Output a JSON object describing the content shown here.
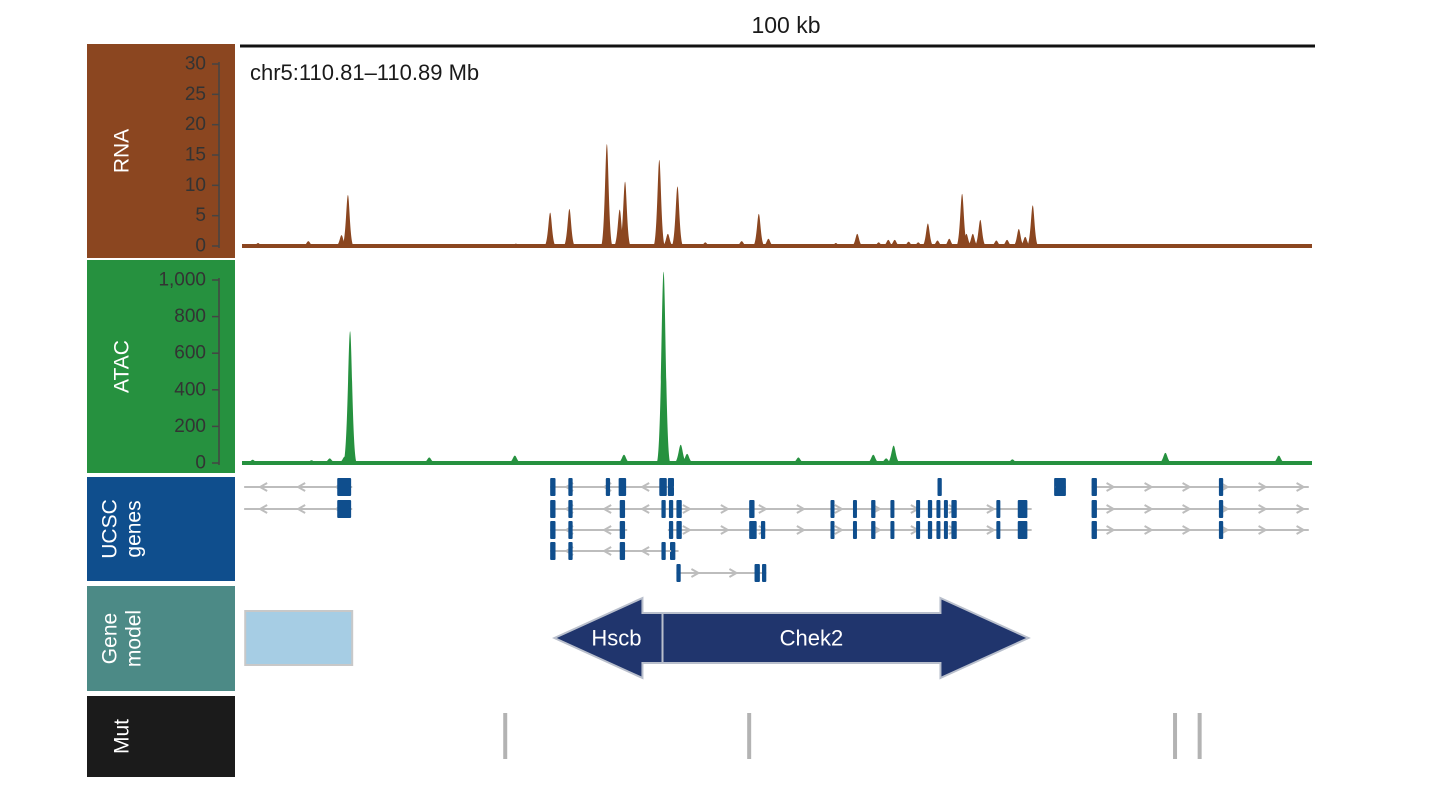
{
  "scale_label": "100 kb",
  "locus_label": "chr5:110.81–110.89 Mb",
  "tracks": [
    {
      "name": "RNA",
      "color": "#8b4620",
      "label_lines": [
        "RNA"
      ]
    },
    {
      "name": "ATAC",
      "color": "#26913f",
      "label_lines": [
        "ATAC"
      ]
    },
    {
      "name": "UCSC genes",
      "color": "#0f4e8d",
      "label_lines": [
        "UCSC",
        "genes"
      ]
    },
    {
      "name": "Gene model",
      "color": "#4c8a86",
      "label_lines": [
        "Gene",
        "model"
      ]
    },
    {
      "name": "Mut",
      "color": "#1b1b1b",
      "label_lines": [
        "Mut"
      ]
    }
  ],
  "rna_axis": {
    "ticks": [
      "30",
      "25",
      "20",
      "15",
      "10",
      "5",
      "0"
    ],
    "min": 0,
    "max": 30
  },
  "atac_axis": {
    "ticks": [
      "1,000",
      "800",
      "600",
      "400",
      "200",
      "0"
    ],
    "min": 0,
    "max": 1000
  },
  "chart_data": [
    {
      "type": "area",
      "track": "RNA",
      "xlim": [
        0,
        100
      ],
      "ylim": [
        0,
        30
      ],
      "peaks": [
        {
          "x": 1.5,
          "y": 0.5
        },
        {
          "x": 6.2,
          "y": 0.8
        },
        {
          "x": 9.3,
          "y": 1.8
        },
        {
          "x": 9.9,
          "y": 8.4
        },
        {
          "x": 25.6,
          "y": 0.4
        },
        {
          "x": 28.8,
          "y": 5.5
        },
        {
          "x": 30.6,
          "y": 6.1
        },
        {
          "x": 34.1,
          "y": 16.8
        },
        {
          "x": 35.3,
          "y": 6.0
        },
        {
          "x": 35.8,
          "y": 10.6
        },
        {
          "x": 39.0,
          "y": 14.2
        },
        {
          "x": 39.8,
          "y": 2.0
        },
        {
          "x": 40.7,
          "y": 9.8
        },
        {
          "x": 43.3,
          "y": 0.6
        },
        {
          "x": 46.7,
          "y": 0.8
        },
        {
          "x": 48.3,
          "y": 5.3
        },
        {
          "x": 49.2,
          "y": 1.2
        },
        {
          "x": 55.5,
          "y": 0.5
        },
        {
          "x": 57.5,
          "y": 2.0
        },
        {
          "x": 59.5,
          "y": 0.6
        },
        {
          "x": 60.4,
          "y": 1.0
        },
        {
          "x": 61.0,
          "y": 1.0
        },
        {
          "x": 62.3,
          "y": 0.7
        },
        {
          "x": 63.2,
          "y": 0.6
        },
        {
          "x": 64.1,
          "y": 3.7
        },
        {
          "x": 65.0,
          "y": 0.9
        },
        {
          "x": 66.1,
          "y": 1.2
        },
        {
          "x": 67.3,
          "y": 8.6
        },
        {
          "x": 67.7,
          "y": 2.0
        },
        {
          "x": 68.3,
          "y": 2.0
        },
        {
          "x": 69.0,
          "y": 4.3
        },
        {
          "x": 70.5,
          "y": 0.9
        },
        {
          "x": 71.5,
          "y": 1.0
        },
        {
          "x": 72.6,
          "y": 2.8
        },
        {
          "x": 73.2,
          "y": 1.5
        },
        {
          "x": 73.9,
          "y": 6.7
        }
      ]
    },
    {
      "type": "area",
      "track": "ATAC",
      "xlim": [
        0,
        100
      ],
      "ylim": [
        0,
        1000
      ],
      "peaks": [
        {
          "x": 1.0,
          "y": 18
        },
        {
          "x": 6.5,
          "y": 15
        },
        {
          "x": 8.2,
          "y": 25
        },
        {
          "x": 9.6,
          "y": 35
        },
        {
          "x": 10.1,
          "y": 720
        },
        {
          "x": 17.5,
          "y": 30
        },
        {
          "x": 25.5,
          "y": 40
        },
        {
          "x": 35.7,
          "y": 45
        },
        {
          "x": 39.4,
          "y": 1045
        },
        {
          "x": 41.0,
          "y": 100
        },
        {
          "x": 41.6,
          "y": 50
        },
        {
          "x": 52.0,
          "y": 30
        },
        {
          "x": 59.0,
          "y": 45
        },
        {
          "x": 60.2,
          "y": 25
        },
        {
          "x": 60.9,
          "y": 95
        },
        {
          "x": 72.0,
          "y": 20
        },
        {
          "x": 86.3,
          "y": 55
        },
        {
          "x": 96.9,
          "y": 40
        }
      ]
    }
  ],
  "ucsc_genes": {
    "transcripts": [
      {
        "row": 0,
        "start": 0.2,
        "end": 10.3,
        "strand": "-",
        "exons": [
          [
            8.9,
            10.2
          ]
        ]
      },
      {
        "row": 1,
        "start": 0.2,
        "end": 10.3,
        "strand": "-",
        "exons": [
          [
            8.9,
            10.2
          ]
        ]
      },
      {
        "row": 0,
        "start": 28.8,
        "end": 40.3,
        "strand": "-",
        "exons": [
          [
            28.8,
            29.3
          ],
          [
            30.5,
            30.9
          ],
          [
            34.0,
            34.4
          ],
          [
            35.2,
            35.9
          ],
          [
            39.0,
            39.7
          ],
          [
            40.0,
            40.3
          ]
        ]
      },
      {
        "row": 1,
        "start": 28.8,
        "end": 40.3,
        "strand": "-",
        "exons": [
          [
            28.8,
            29.3
          ],
          [
            30.5,
            30.9
          ],
          [
            35.3,
            35.8
          ],
          [
            39.2,
            39.6
          ]
        ]
      },
      {
        "row": 2,
        "start": 28.8,
        "end": 36.0,
        "strand": "-",
        "exons": [
          [
            28.8,
            29.3
          ],
          [
            30.5,
            30.9
          ],
          [
            35.3,
            35.8
          ]
        ]
      },
      {
        "row": 3,
        "start": 28.8,
        "end": 40.3,
        "strand": "-",
        "exons": [
          [
            28.8,
            29.3
          ],
          [
            30.5,
            30.9
          ],
          [
            35.3,
            35.8
          ],
          [
            39.2,
            39.6
          ],
          [
            40.0,
            40.3
          ]
        ]
      },
      {
        "row": 0,
        "start": 39.8,
        "end": 40.3,
        "strand": "+",
        "exons": [
          [
            39.8,
            40.3
          ],
          [
            65.0,
            65.4
          ],
          [
            75.9,
            76.5
          ]
        ]
      },
      {
        "row": 1,
        "start": 39.8,
        "end": 73.8,
        "strand": "+",
        "exons": [
          [
            39.9,
            40.3
          ],
          [
            40.6,
            41.1
          ],
          [
            47.4,
            47.9
          ],
          [
            55.0,
            55.3
          ],
          [
            57.1,
            57.4
          ],
          [
            58.8,
            59.2
          ],
          [
            60.6,
            60.9
          ],
          [
            63.0,
            63.3
          ],
          [
            64.1,
            64.5
          ],
          [
            64.9,
            65.2
          ],
          [
            65.6,
            65.9
          ],
          [
            66.3,
            66.8
          ],
          [
            70.5,
            70.8
          ],
          [
            72.5,
            73.4
          ]
        ]
      },
      {
        "row": 2,
        "start": 39.8,
        "end": 73.8,
        "strand": "+",
        "exons": [
          [
            39.9,
            40.3
          ],
          [
            40.6,
            41.1
          ],
          [
            47.4,
            48.1
          ],
          [
            48.5,
            48.9
          ],
          [
            55.0,
            55.3
          ],
          [
            57.1,
            57.4
          ],
          [
            58.8,
            59.2
          ],
          [
            60.6,
            60.9
          ],
          [
            63.0,
            63.3
          ],
          [
            64.1,
            64.5
          ],
          [
            64.9,
            65.2
          ],
          [
            65.6,
            65.9
          ],
          [
            66.3,
            66.8
          ],
          [
            70.5,
            70.8
          ],
          [
            72.5,
            73.4
          ]
        ]
      },
      {
        "row": 3,
        "start": 39.8,
        "end": 40.8,
        "strand": "+",
        "exons": [
          [
            40.1,
            40.5
          ]
        ]
      },
      {
        "row": 4,
        "start": 40.6,
        "end": 49.0,
        "strand": "+",
        "exons": [
          [
            40.6,
            41.0
          ],
          [
            47.9,
            48.4
          ],
          [
            48.6,
            49.0
          ]
        ]
      },
      {
        "row": 0,
        "start": 76.0,
        "end": 77.0,
        "strand": "+",
        "exons": [
          [
            76.0,
            77.0
          ]
        ]
      },
      {
        "row": 0,
        "start": 79.4,
        "end": 99.7,
        "strand": "+",
        "exons": [
          [
            79.4,
            79.9
          ],
          [
            91.3,
            91.7
          ]
        ]
      },
      {
        "row": 1,
        "start": 79.4,
        "end": 99.7,
        "strand": "+",
        "exons": [
          [
            79.4,
            79.9
          ],
          [
            91.3,
            91.7
          ]
        ]
      },
      {
        "row": 2,
        "start": 79.4,
        "end": 99.7,
        "strand": "+",
        "exons": [
          [
            79.4,
            79.9
          ],
          [
            91.3,
            91.7
          ]
        ]
      }
    ]
  },
  "gene_model": {
    "box": {
      "start": 0.3,
      "end": 10.3,
      "color": "#a6cde4"
    },
    "genes": [
      {
        "name": "Hscb",
        "start": 29.2,
        "end": 39.3,
        "strand": "-",
        "color": "#20356d"
      },
      {
        "name": "Chek2",
        "start": 39.3,
        "end": 73.5,
        "strand": "+",
        "color": "#20356d"
      }
    ]
  },
  "mutations": [
    24.6,
    47.4,
    87.2,
    89.5
  ]
}
